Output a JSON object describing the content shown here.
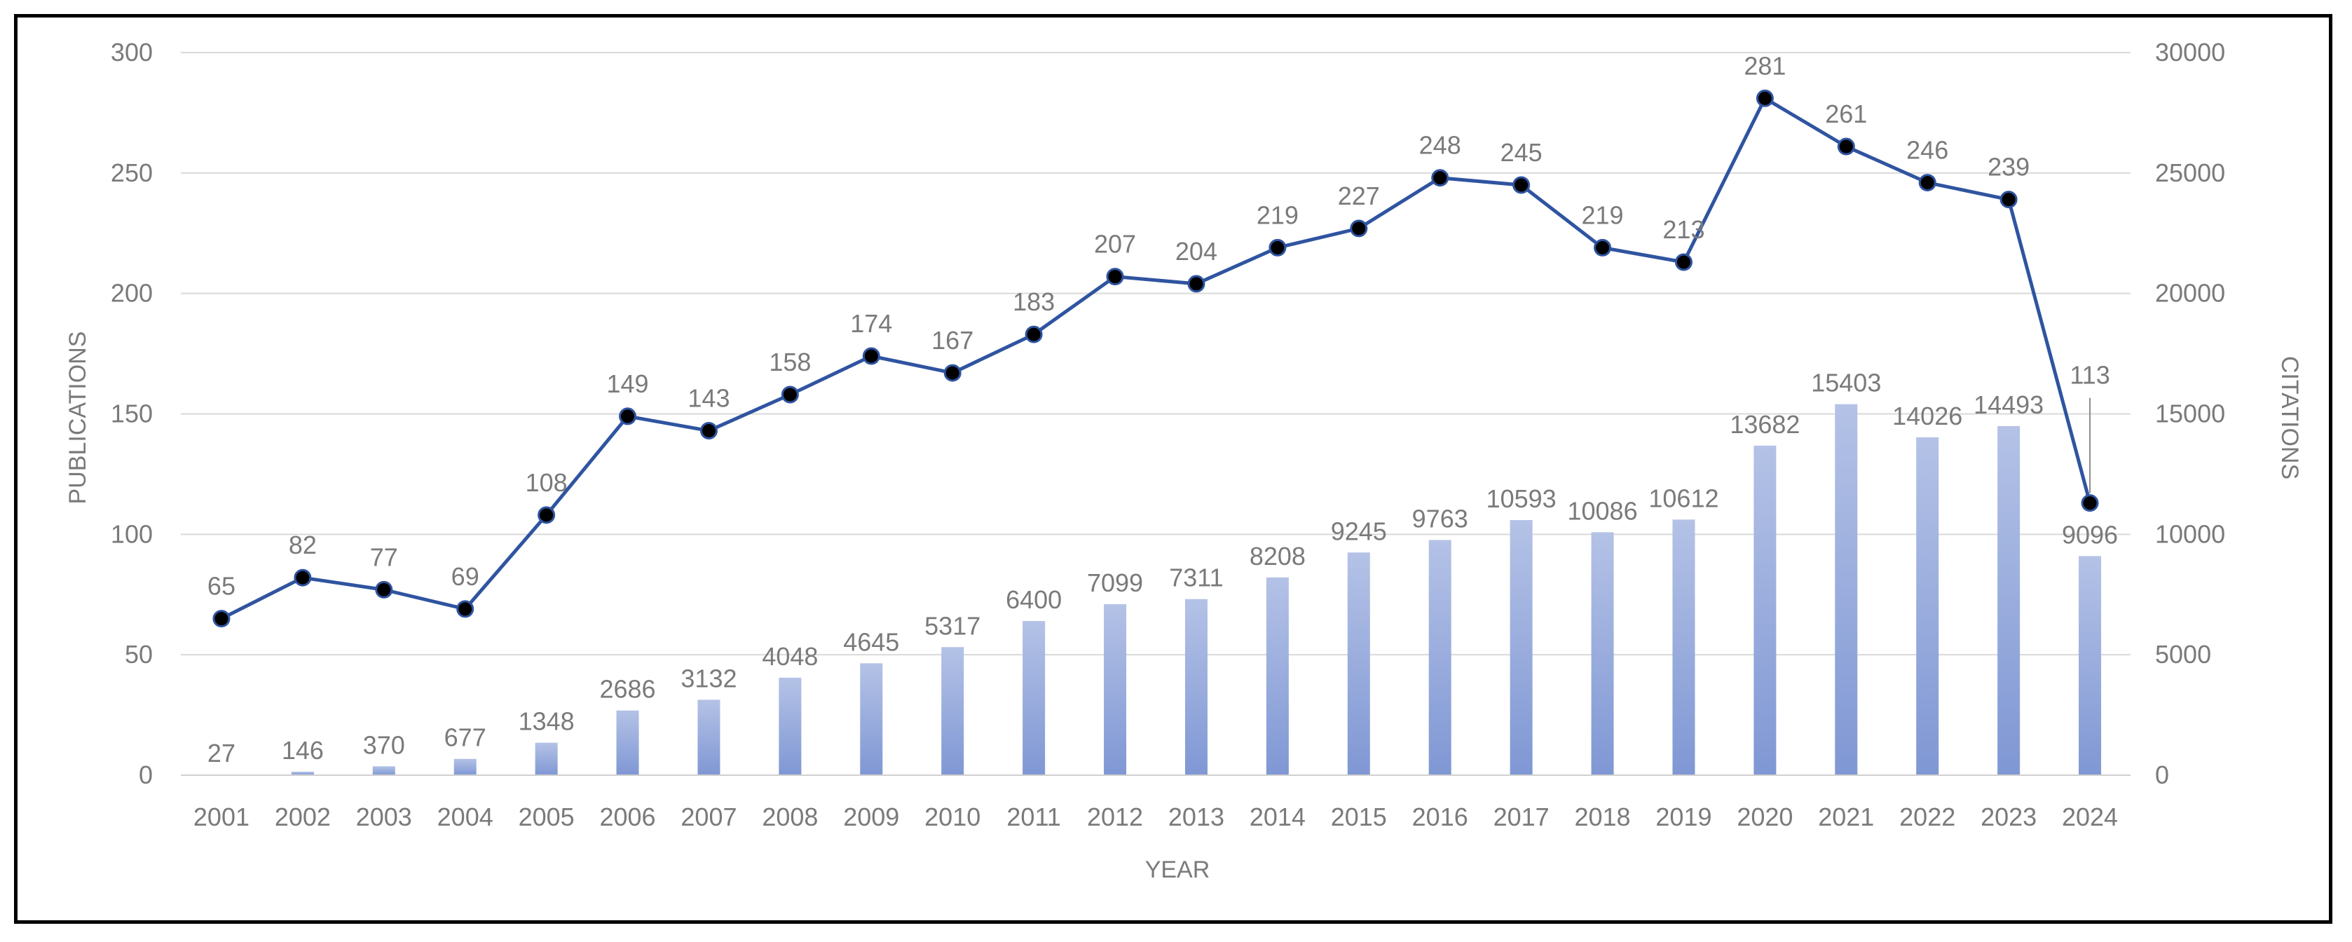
{
  "chart_data": {
    "type": "bar+line",
    "title": "",
    "xlabel": "YEAR",
    "ylabel_left": "PUBLICATIONS",
    "ylabel_right": "CITATIONS",
    "ylim_left": [
      0,
      300
    ],
    "ylim_right": [
      0,
      30000
    ],
    "yticks_left": [
      "0",
      "50",
      "100",
      "150",
      "200",
      "250",
      "300"
    ],
    "yticks_right": [
      "0",
      "5000",
      "10000",
      "15000",
      "20000",
      "25000",
      "30000"
    ],
    "grid": true,
    "categories": [
      "2001",
      "2002",
      "2003",
      "2004",
      "2005",
      "2006",
      "2007",
      "2008",
      "2009",
      "2010",
      "2011",
      "2012",
      "2013",
      "2014",
      "2015",
      "2016",
      "2017",
      "2018",
      "2019",
      "2020",
      "2021",
      "2022",
      "2023",
      "2024"
    ],
    "series": [
      {
        "name": "Publications",
        "type": "line",
        "axis": "left",
        "color": "#2f54a0",
        "values": [
          65,
          82,
          77,
          69,
          108,
          149,
          143,
          158,
          174,
          167,
          183,
          207,
          204,
          219,
          227,
          248,
          245,
          219,
          213,
          281,
          261,
          246,
          239,
          113
        ]
      },
      {
        "name": "Citations",
        "type": "bar",
        "axis": "right",
        "color": "#8fa5da",
        "values": [
          27,
          146,
          370,
          677,
          1348,
          2686,
          3132,
          4048,
          4645,
          5317,
          6400,
          7099,
          7311,
          8208,
          9245,
          9763,
          10593,
          10086,
          10612,
          13682,
          15403,
          14026,
          14493,
          9096
        ]
      }
    ]
  }
}
